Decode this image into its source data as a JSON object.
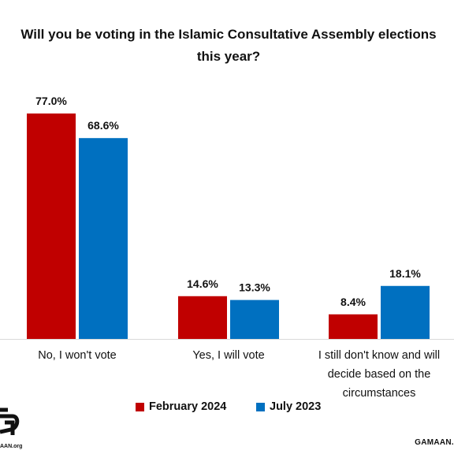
{
  "title_lines": [
    "Will you be voting in the Islamic Consultative Assembly elections",
    "this year?"
  ],
  "chart_data": {
    "type": "bar",
    "title": "Will you be voting in the Islamic Consultative Assembly elections this year?",
    "categories": [
      [
        "No, I won't vote"
      ],
      [
        "Yes, I will vote"
      ],
      [
        "I still don't know and will",
        "decide based on the",
        "circumstances"
      ]
    ],
    "series": [
      {
        "name": "February 2024",
        "color": "#c00000",
        "values": [
          77.0,
          14.6,
          8.4
        ],
        "labels": [
          "77.0%",
          "14.6%",
          "8.4%"
        ]
      },
      {
        "name": "July 2023",
        "color": "#0070c0",
        "values": [
          68.6,
          13.3,
          18.1
        ],
        "labels": [
          "68.6%",
          "13.3%",
          "18.1%"
        ]
      }
    ],
    "ylim": [
      0,
      77
    ],
    "grid": false,
    "legend_position": "bottom"
  },
  "footer": {
    "brand": "GAMAAN.",
    "logo_text": "AAN.org"
  }
}
